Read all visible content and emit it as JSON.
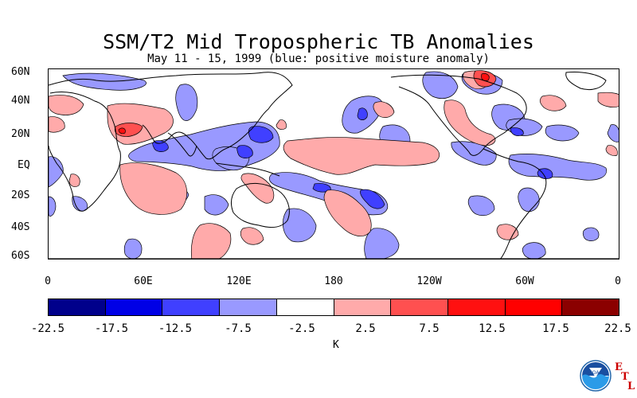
{
  "title": "SSM/T2 Mid Tropospheric TB Anomalies",
  "subtitle": "May 11 - 15, 1999 (blue: positive moisture anomaly)",
  "lat_labels": [
    "60N",
    "40N",
    "20N",
    "EQ",
    "20S",
    "40S",
    "60S"
  ],
  "lon_labels": [
    "0",
    "60E",
    "120E",
    "180",
    "120W",
    "60W",
    "0"
  ],
  "colorbar": {
    "colors": [
      "#00008b",
      "#0000e6",
      "#4040ff",
      "#9999ff",
      "#ffffff",
      "#ffaaaa",
      "#ff5050",
      "#ff1010",
      "#ff0000",
      "#8b0000"
    ],
    "tick_labels": [
      "-22.5",
      "-17.5",
      "-12.5",
      "-7.5",
      "-2.5",
      "2.5",
      "7.5",
      "12.5",
      "17.5",
      "22.5"
    ],
    "unit": "K"
  },
  "logo": {
    "name": "NOAA",
    "letters": [
      "E",
      "T",
      "L"
    ]
  }
}
